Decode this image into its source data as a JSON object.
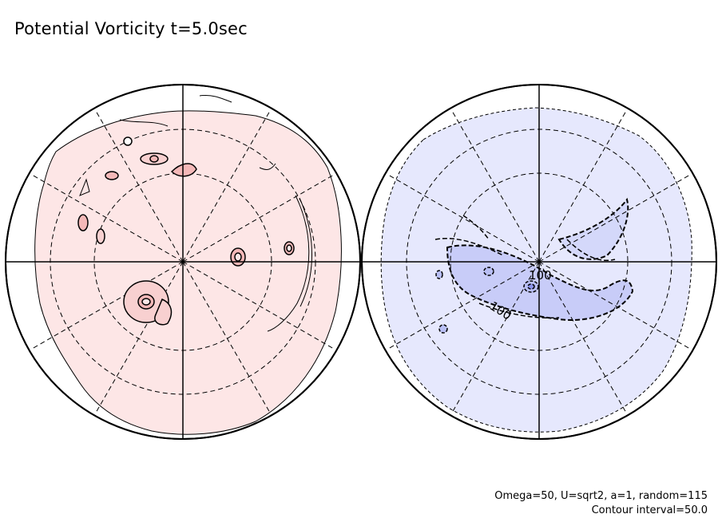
{
  "title": "Potential Vorticity t=5.0sec",
  "footnote": {
    "params": "Omega=50, U=sqrt2, a=1, random=115",
    "interval": "Contour interval=50.0"
  },
  "chart_data": {
    "type": "contour",
    "title": "Potential Vorticity t=5.0sec",
    "projection": "polar stereographic",
    "contour_interval": 50.0,
    "panels": [
      {
        "name": "left-hemisphere",
        "sign": "positive",
        "fill_color": "#fde6e6",
        "highlight_color": "#f4b8b8"
      },
      {
        "name": "right-hemisphere",
        "sign": "negative",
        "fill_color": "#e6e8fd",
        "highlight_color": "#b8bef4",
        "contour_labels": [
          "100",
          "100"
        ]
      }
    ]
  }
}
